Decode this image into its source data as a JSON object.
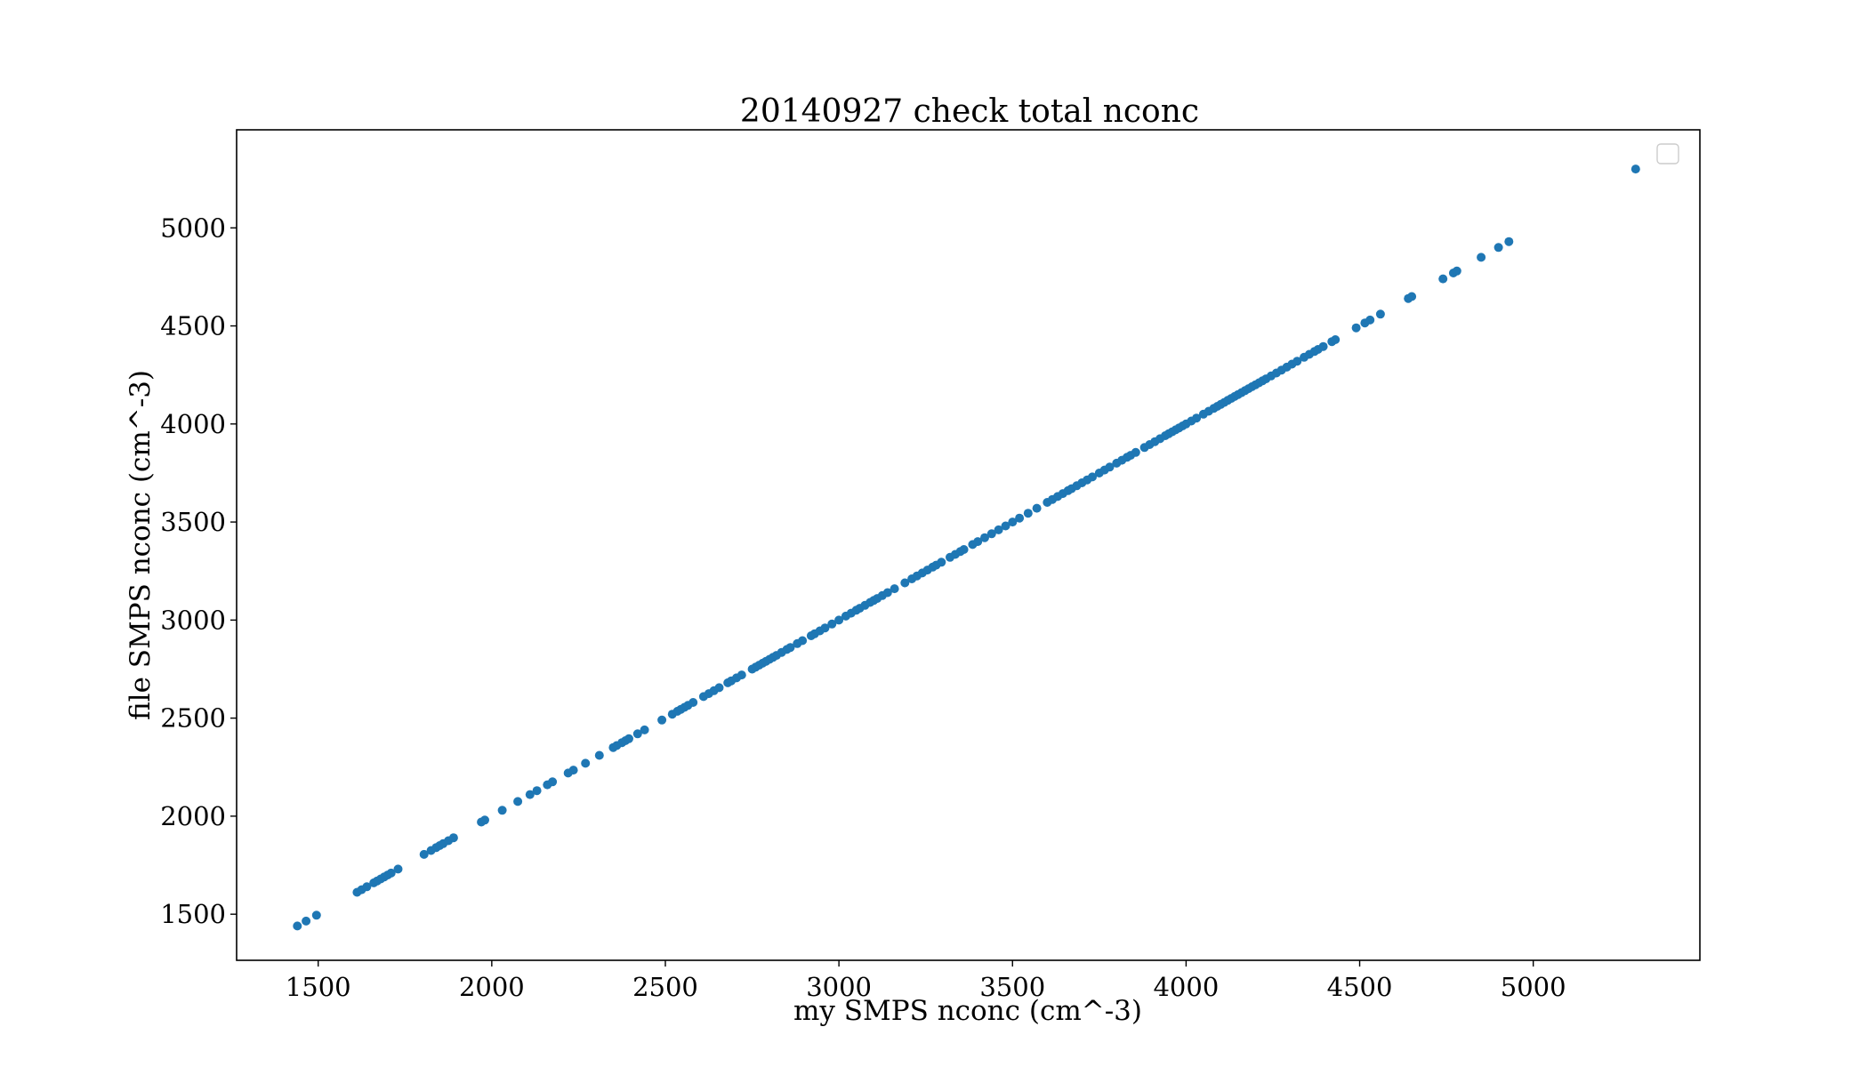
{
  "chart_data": {
    "type": "scatter",
    "title": "20140927 check total nconc",
    "xlabel": "my SMPS nconc (cm^-3)",
    "ylabel": "file SMPS nconc (cm^-3)",
    "xlim": [
      1265,
      5480
    ],
    "ylim": [
      1265,
      5500
    ],
    "xticks": [
      1500,
      2000,
      2500,
      3000,
      3500,
      4000,
      4500,
      5000
    ],
    "yticks": [
      1500,
      2000,
      2500,
      3000,
      3500,
      4000,
      4500,
      5000
    ],
    "grid": false,
    "legend": "top-right, empty",
    "marker_color": "#1f77b4",
    "series": [
      {
        "x": [
          1440,
          1465,
          1495,
          1612,
          1625,
          1640,
          1660,
          1670,
          1680,
          1690,
          1700,
          1710,
          1730,
          1805,
          1825,
          1840,
          1850,
          1860,
          1875,
          1890,
          1970,
          1980,
          2030,
          2075,
          2110,
          2130,
          2160,
          2175,
          2220,
          2235,
          2270,
          2310,
          2350,
          2360,
          2375,
          2385,
          2395,
          2420,
          2440,
          2490,
          2520,
          2535,
          2545,
          2555,
          2565,
          2580,
          2610,
          2625,
          2640,
          2655,
          2680,
          2690,
          2705,
          2720,
          2750,
          2760,
          2770,
          2780,
          2790,
          2800,
          2810,
          2820,
          2835,
          2850,
          2860,
          2880,
          2895,
          2920,
          2930,
          2945,
          2960,
          2980,
          3000,
          3020,
          3035,
          3050,
          3060,
          3075,
          3090,
          3100,
          3110,
          3125,
          3140,
          3160,
          3190,
          3210,
          3225,
          3240,
          3255,
          3270,
          3280,
          3295,
          3320,
          3335,
          3350,
          3360,
          3385,
          3400,
          3420,
          3440,
          3460,
          3480,
          3500,
          3520,
          3545,
          3570,
          3600,
          3615,
          3630,
          3645,
          3660,
          3670,
          3685,
          3700,
          3715,
          3730,
          3750,
          3765,
          3780,
          3800,
          3815,
          3830,
          3840,
          3855,
          3880,
          3895,
          3910,
          3925,
          3940,
          3950,
          3960,
          3970,
          3980,
          3990,
          4000,
          4015,
          4030,
          4050,
          4065,
          4080,
          4090,
          4100,
          4110,
          4120,
          4130,
          4140,
          4150,
          4160,
          4170,
          4180,
          4190,
          4200,
          4210,
          4220,
          4230,
          4245,
          4260,
          4275,
          4290,
          4305,
          4320,
          4340,
          4355,
          4370,
          4380,
          4395,
          4420,
          4430,
          4490,
          4515,
          4530,
          4560,
          4640,
          4650,
          4740,
          4770,
          4780,
          4850,
          4900,
          4930,
          5295
        ],
        "y": [
          1440,
          1465,
          1495,
          1612,
          1625,
          1640,
          1660,
          1670,
          1680,
          1690,
          1700,
          1710,
          1730,
          1805,
          1825,
          1840,
          1850,
          1860,
          1875,
          1890,
          1970,
          1980,
          2030,
          2075,
          2110,
          2130,
          2160,
          2175,
          2220,
          2235,
          2270,
          2310,
          2350,
          2360,
          2375,
          2385,
          2395,
          2420,
          2440,
          2490,
          2520,
          2535,
          2545,
          2555,
          2565,
          2580,
          2610,
          2625,
          2640,
          2655,
          2680,
          2690,
          2705,
          2720,
          2750,
          2760,
          2770,
          2780,
          2790,
          2800,
          2810,
          2820,
          2835,
          2850,
          2860,
          2880,
          2895,
          2920,
          2930,
          2945,
          2960,
          2980,
          3000,
          3020,
          3035,
          3050,
          3060,
          3075,
          3090,
          3100,
          3110,
          3125,
          3140,
          3160,
          3190,
          3210,
          3225,
          3240,
          3255,
          3270,
          3280,
          3295,
          3320,
          3335,
          3350,
          3360,
          3385,
          3400,
          3420,
          3440,
          3460,
          3480,
          3500,
          3520,
          3545,
          3570,
          3600,
          3615,
          3630,
          3645,
          3660,
          3670,
          3685,
          3700,
          3715,
          3730,
          3750,
          3765,
          3780,
          3800,
          3815,
          3830,
          3840,
          3855,
          3880,
          3895,
          3910,
          3925,
          3940,
          3950,
          3960,
          3970,
          3980,
          3990,
          4000,
          4015,
          4030,
          4050,
          4065,
          4080,
          4090,
          4100,
          4110,
          4120,
          4130,
          4140,
          4150,
          4160,
          4170,
          4180,
          4190,
          4200,
          4210,
          4220,
          4230,
          4245,
          4260,
          4275,
          4290,
          4305,
          4320,
          4340,
          4355,
          4370,
          4380,
          4395,
          4420,
          4430,
          4490,
          4515,
          4530,
          4560,
          4640,
          4650,
          4740,
          4770,
          4780,
          4850,
          4900,
          4930,
          5300
        ]
      }
    ]
  }
}
